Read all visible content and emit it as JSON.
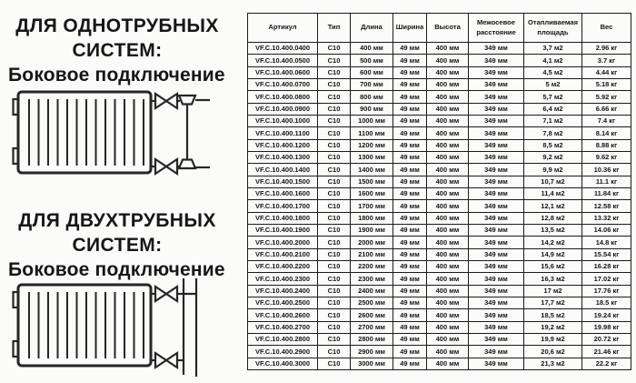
{
  "left_panel": {
    "sections": [
      {
        "title_line1": "ДЛЯ ОДНОТРУБНЫХ",
        "title_line2": "СИСТЕМ:",
        "subtitle": "Боковое подключение",
        "diagram": "radiator-side-connection-one-pipe"
      },
      {
        "title_line1": "ДЛЯ ДВУХТРУБНЫХ",
        "title_line2": "СИСТЕМ:",
        "subtitle": "Боковое подключение",
        "diagram": "radiator-side-connection-two-pipe"
      }
    ]
  },
  "table": {
    "headers": [
      "Артикул",
      "Тип",
      "Длина",
      "Ширина",
      "Высота",
      "Межосевое расстояние",
      "Отапливаемая площадь",
      "Вес"
    ],
    "rows": [
      [
        "VF.C.10.400.0400",
        "C10",
        "400 мм",
        "49 мм",
        "400 мм",
        "349 мм",
        "3,7 м2",
        "2.96 кг"
      ],
      [
        "VF.C.10.400.0500",
        "C10",
        "500 мм",
        "49 мм",
        "400 мм",
        "349 мм",
        "4,1 м2",
        "3.7 кг"
      ],
      [
        "VF.C.10.400.0600",
        "C10",
        "600 мм",
        "49 мм",
        "400 мм",
        "349 мм",
        "4,5 м2",
        "4.44 кг"
      ],
      [
        "VF.C.10.400.0700",
        "C10",
        "700 мм",
        "49 мм",
        "400 мм",
        "349 мм",
        "5 м2",
        "5.18 кг"
      ],
      [
        "VF.C.10.400.0800",
        "C10",
        "800 мм",
        "49 мм",
        "400 мм",
        "349 мм",
        "5,7 м2",
        "5.92 кг"
      ],
      [
        "VF.C.10.400.0900",
        "C10",
        "900 мм",
        "49 мм",
        "400 мм",
        "349 мм",
        "6,4 м2",
        "6.66 кг"
      ],
      [
        "VF.C.10.400.1000",
        "C10",
        "1000 мм",
        "49 мм",
        "400 мм",
        "349 мм",
        "7,1 м2",
        "7.4 кг"
      ],
      [
        "VF.C.10.400.1100",
        "C10",
        "1100 мм",
        "49 мм",
        "400 мм",
        "349 мм",
        "7,8 м2",
        "8.14 кг"
      ],
      [
        "VF.C.10.400.1200",
        "C10",
        "1200 мм",
        "49 мм",
        "400 мм",
        "349 мм",
        "8,5 м2",
        "8.88 кг"
      ],
      [
        "VF.C.10.400.1300",
        "C10",
        "1300 мм",
        "49 мм",
        "400 мм",
        "349 мм",
        "9,2 м2",
        "9.62 кг"
      ],
      [
        "VF.C.10.400.1400",
        "C10",
        "1400 мм",
        "49 мм",
        "400 мм",
        "349 мм",
        "9,9 м2",
        "10.36 кг"
      ],
      [
        "VF.C.10.400.1500",
        "C10",
        "1500 мм",
        "49 мм",
        "400 мм",
        "349 мм",
        "10,7 м2",
        "11.1 кг"
      ],
      [
        "VF.C.10.400.1600",
        "C10",
        "1600 мм",
        "49 мм",
        "400 мм",
        "349 мм",
        "11,4 м2",
        "11.84 кг"
      ],
      [
        "VF.C.10.400.1700",
        "C10",
        "1700 мм",
        "49 мм",
        "400 мм",
        "349 мм",
        "12,1 м2",
        "12.58 кг"
      ],
      [
        "VF.C.10.400.1800",
        "C10",
        "1800 мм",
        "49 мм",
        "400 мм",
        "349 мм",
        "12,8 м2",
        "13.32 кг"
      ],
      [
        "VF.C.10.400.1900",
        "C10",
        "1900 мм",
        "49 мм",
        "400 мм",
        "349 мм",
        "13,5 м2",
        "14.06 кг"
      ],
      [
        "VF.C.10.400.2000",
        "C10",
        "2000 мм",
        "49 мм",
        "400 мм",
        "349 мм",
        "14,2 м2",
        "14.8 кг"
      ],
      [
        "VF.C.10.400.2100",
        "C10",
        "2100 мм",
        "49 мм",
        "400 мм",
        "349 мм",
        "14,9 м2",
        "15.54 кг"
      ],
      [
        "VF.C.10.400.2200",
        "C10",
        "2200 мм",
        "49 мм",
        "400 мм",
        "349 мм",
        "15,6 м2",
        "16.28 кг"
      ],
      [
        "VF.C.10.400.2300",
        "C10",
        "2300 мм",
        "49 мм",
        "400 мм",
        "349 мм",
        "16,3 м2",
        "17.02 кг"
      ],
      [
        "VF.C.10.400.2400",
        "C10",
        "2400 мм",
        "49 мм",
        "400 мм",
        "349 мм",
        "17 м2",
        "17.76 кг"
      ],
      [
        "VF.C.10.400.2500",
        "C10",
        "2500 мм",
        "49 мм",
        "400 мм",
        "349 мм",
        "17,7 м2",
        "18.5 кг"
      ],
      [
        "VF.C.10.400.2600",
        "C10",
        "2600 мм",
        "49 мм",
        "400 мм",
        "349 мм",
        "18,5 м2",
        "19.24 кг"
      ],
      [
        "VF.C.10.400.2700",
        "C10",
        "2700 мм",
        "49 мм",
        "400 мм",
        "349 мм",
        "19,2 м2",
        "19.98 кг"
      ],
      [
        "VF.C.10.400.2800",
        "C10",
        "2800 мм",
        "49 мм",
        "400 мм",
        "349 мм",
        "19,9 м2",
        "20.72 кг"
      ],
      [
        "VF.C.10.400.2900",
        "C10",
        "2900 мм",
        "49 мм",
        "400 мм",
        "349 мм",
        "20,6 м2",
        "21.46 кг"
      ],
      [
        "VF.C.10.400.3000",
        "C10",
        "3000 мм",
        "49 мм",
        "400 мм",
        "349 мм",
        "21,3 м2",
        "22.2 кг"
      ]
    ]
  },
  "colors": {
    "background": "#fbfbfa",
    "text": "#161616",
    "table_border": "#1b1b1b"
  }
}
